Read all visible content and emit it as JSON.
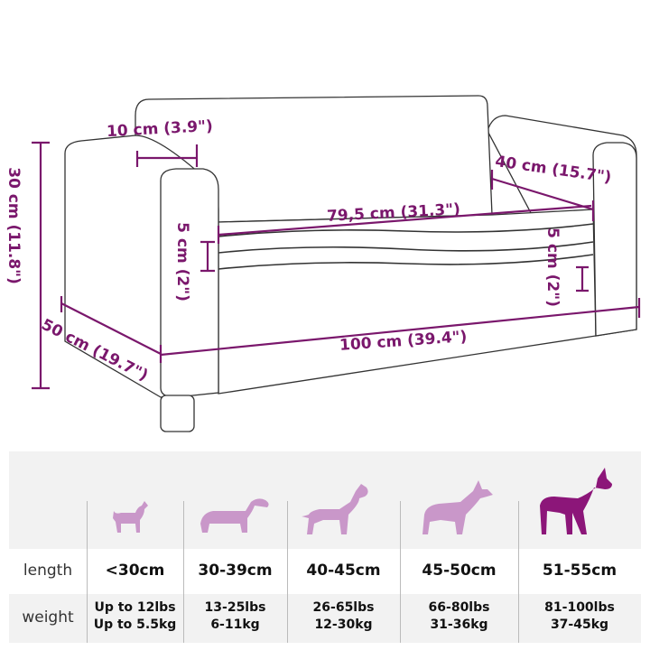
{
  "colors": {
    "accent": "#7a176c",
    "dog_light": "#c997c9",
    "dog_dark": "#8c1679",
    "outline": "#333333",
    "table_bg": "#f2f2f2"
  },
  "dimensions": {
    "backrest_thickness": "10 cm (3.9\")",
    "height": "30 cm (11.8\")",
    "seat_depth": "40 cm (15.7\")",
    "seat_width": "79,5 cm (31.3\")",
    "cushion_left": "5 cm (2\")",
    "leg_height": "5 cm (2\")",
    "depth": "50 cm (19.7\")",
    "width": "100 cm (39.4\")"
  },
  "size_table": {
    "row_labels": {
      "length": "length",
      "weight": "weight"
    },
    "columns": [
      {
        "icon": "chihuahua-icon",
        "length": "<30cm",
        "weight_lbs": "Up to 12lbs",
        "weight_kg": "Up to 5.5kg",
        "highlight": false
      },
      {
        "icon": "dachshund-icon",
        "length": "30-39cm",
        "weight_lbs": "13-25lbs",
        "weight_kg": "6-11kg",
        "highlight": false
      },
      {
        "icon": "bull-terrier-icon",
        "length": "40-45cm",
        "weight_lbs": "26-65lbs",
        "weight_kg": "12-30kg",
        "highlight": false
      },
      {
        "icon": "shepherd-icon",
        "length": "45-50cm",
        "weight_lbs": "66-80lbs",
        "weight_kg": "31-36kg",
        "highlight": false
      },
      {
        "icon": "great-dane-icon",
        "length": "51-55cm",
        "weight_lbs": "81-100lbs",
        "weight_kg": "37-45kg",
        "highlight": true
      }
    ]
  }
}
